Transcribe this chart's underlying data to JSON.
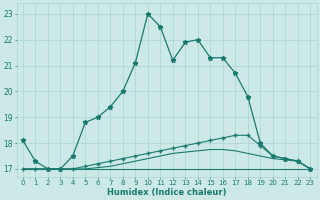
{
  "xlabel": "Humidex (Indice chaleur)",
  "x": [
    0,
    1,
    2,
    3,
    4,
    5,
    6,
    7,
    8,
    9,
    10,
    11,
    12,
    13,
    14,
    15,
    16,
    17,
    18,
    19,
    20,
    21,
    22,
    23
  ],
  "line1": [
    18.1,
    17.3,
    17.0,
    17.0,
    17.5,
    18.8,
    19.0,
    19.4,
    20.0,
    21.1,
    23.0,
    22.5,
    21.2,
    21.9,
    22.0,
    21.3,
    21.3,
    20.7,
    19.8,
    18.0,
    17.5,
    17.4,
    17.3,
    17.0
  ],
  "line2": [
    17.0,
    17.0,
    17.0,
    17.0,
    17.0,
    17.1,
    17.2,
    17.3,
    17.4,
    17.5,
    17.6,
    17.7,
    17.8,
    17.9,
    18.0,
    18.1,
    18.2,
    18.3,
    18.3,
    17.9,
    17.5,
    17.4,
    17.3,
    17.0
  ],
  "line3": [
    17.0,
    17.0,
    17.0,
    17.0,
    17.0,
    17.0,
    17.05,
    17.1,
    17.2,
    17.3,
    17.4,
    17.5,
    17.6,
    17.65,
    17.7,
    17.75,
    17.75,
    17.7,
    17.6,
    17.5,
    17.4,
    17.35,
    17.3,
    17.0
  ],
  "line4": [
    17.0,
    17.0,
    17.0,
    17.0,
    17.0,
    17.0,
    17.0,
    17.0,
    17.0,
    17.0,
    17.0,
    17.0,
    17.0,
    17.0,
    17.0,
    17.0,
    17.0,
    17.0,
    17.0,
    17.0,
    17.0,
    17.0,
    17.0,
    17.0
  ],
  "line_color": "#1a7a6e",
  "bg_color": "#cce9e7",
  "grid_color": "#aad4d1",
  "ylim": [
    16.7,
    23.4
  ],
  "yticks": [
    17,
    18,
    19,
    20,
    21,
    22,
    23
  ],
  "xlim": [
    -0.5,
    23.5
  ]
}
